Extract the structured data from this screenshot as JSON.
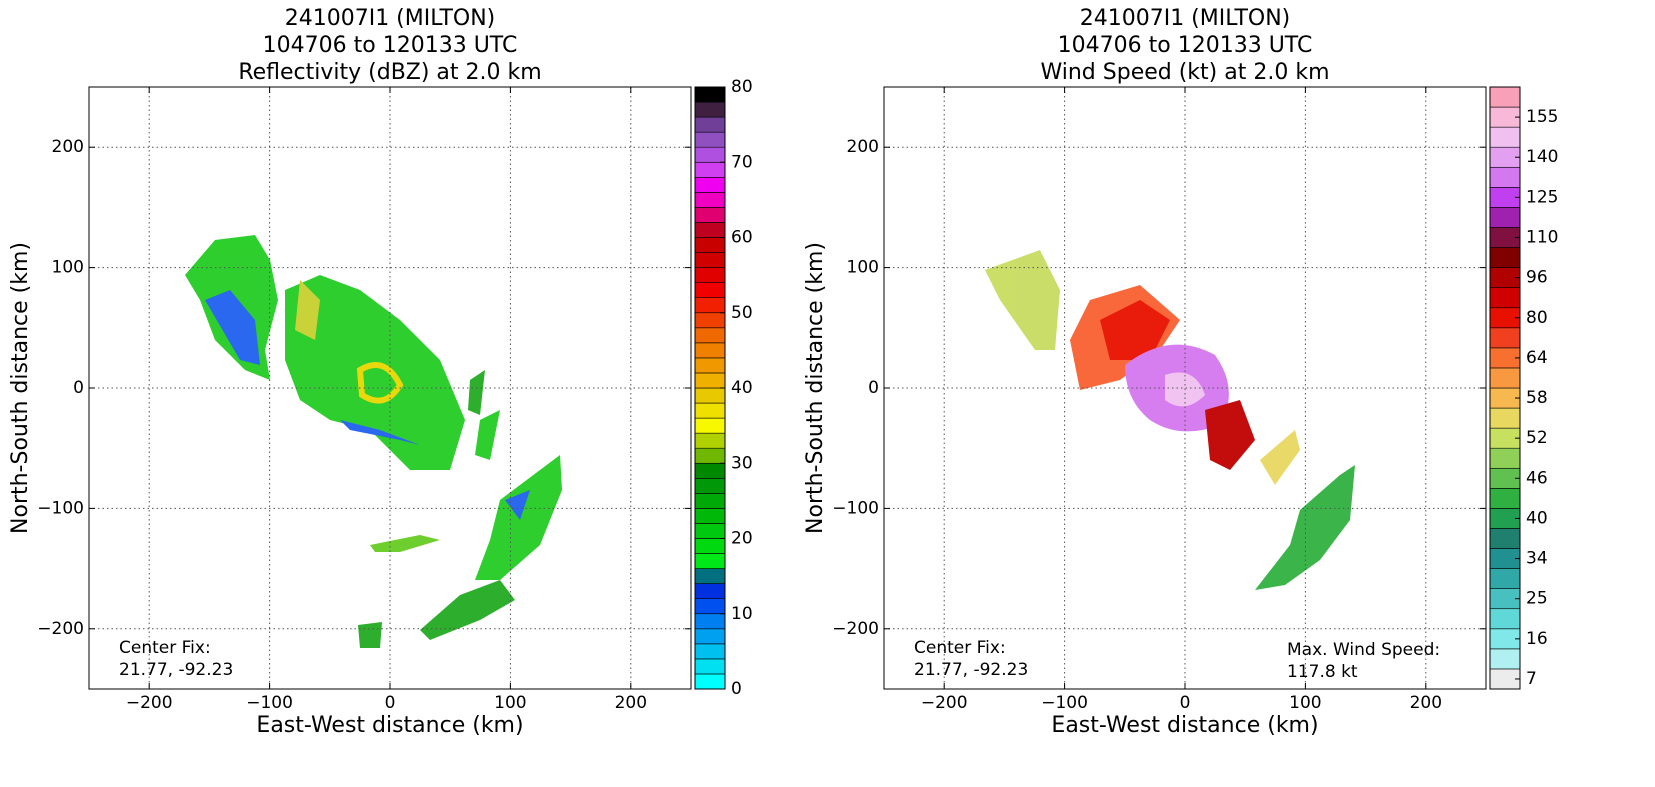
{
  "chart_data": [
    {
      "type": "heatmap",
      "title": [
        "241007I1 (MILTON)",
        "104706 to 120133 UTC",
        "Reflectivity (dBZ) at 2.0 km"
      ],
      "xlabel": "East-West distance (km)",
      "ylabel": "North-South distance (km)",
      "xlim": [
        -250,
        250
      ],
      "ylim": [
        -250,
        250
      ],
      "xticks": [
        {
          "value": -200,
          "label": "−200"
        },
        {
          "value": -100,
          "label": "−100"
        },
        0,
        100,
        200
      ],
      "yticks": [
        {
          "value": -200,
          "label": "−200"
        },
        {
          "value": -100,
          "label": "−100"
        },
        0,
        100,
        200
      ],
      "grid": true,
      "colorbar": {
        "clim": [
          0,
          80
        ],
        "ticks": [
          0,
          10,
          20,
          30,
          40,
          50,
          60,
          70,
          80
        ],
        "colors": [
          "#00ffff",
          "#00e0f0",
          "#00c0f0",
          "#00a0f0",
          "#0080f0",
          "#0050f0",
          "#0030e0",
          "#007080",
          "#00e818",
          "#00d810",
          "#00c810",
          "#00b808",
          "#00a808",
          "#009808",
          "#008800",
          "#70b800",
          "#b0d000",
          "#f8f800",
          "#f0e000",
          "#e8c800",
          "#f0b000",
          "#f09800",
          "#f08000",
          "#f06800",
          "#f04000",
          "#f02000",
          "#f00000",
          "#e00000",
          "#d00000",
          "#c80000",
          "#c00020",
          "#e00070",
          "#f000c0",
          "#f000f0",
          "#d040f0",
          "#b050e0",
          "#9050c0",
          "#704098",
          "#402040",
          "#000000"
        ]
      },
      "annotations": [
        [
          "Center Fix:",
          "21.77, -92.23"
        ]
      ]
    },
    {
      "type": "heatmap",
      "title": [
        "241007I1 (MILTON)",
        "104706 to 120133 UTC",
        "Wind Speed (kt) at 2.0 km"
      ],
      "xlabel": "East-West distance (km)",
      "ylabel": "North-South distance (km)",
      "xlim": [
        -250,
        250
      ],
      "ylim": [
        -250,
        250
      ],
      "xticks": [
        {
          "value": -200,
          "label": "−200"
        },
        {
          "value": -100,
          "label": "−100"
        },
        0,
        100,
        200
      ],
      "yticks": [
        {
          "value": -200,
          "label": "−200"
        },
        {
          "value": -100,
          "label": "−100"
        },
        0,
        100,
        200
      ],
      "grid": true,
      "colorbar": {
        "ticks": [
          7,
          16,
          25,
          34,
          40,
          46,
          52,
          58,
          64,
          80,
          96,
          110,
          125,
          140,
          155
        ],
        "colors": [
          "#ececec",
          "#b0f0f0",
          "#80e8e8",
          "#60d8d8",
          "#48c0c0",
          "#30a8a8",
          "#209090",
          "#208070",
          "#20a050",
          "#30b040",
          "#60c050",
          "#90d058",
          "#c8e060",
          "#e8d860",
          "#f8b850",
          "#f89840",
          "#f87030",
          "#f04020",
          "#e81000",
          "#d00000",
          "#b00000",
          "#800000",
          "#801040",
          "#a020b0",
          "#c040f0",
          "#d478f0",
          "#e4a0f0",
          "#f0c0f0",
          "#f8b8d8",
          "#f8a0b8"
        ]
      },
      "annotations": [
        [
          "Center Fix:",
          "21.77, -92.23"
        ],
        [
          "Max. Wind Speed:",
          "117.8 kt"
        ]
      ]
    }
  ]
}
